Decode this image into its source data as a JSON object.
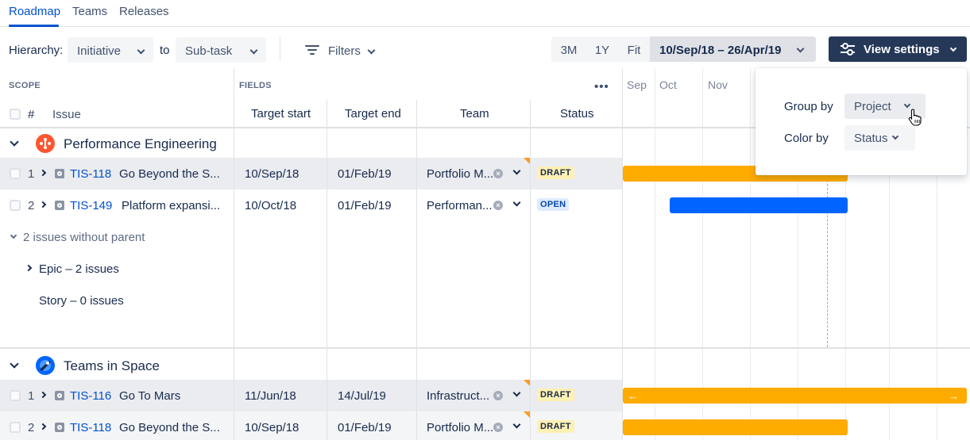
{
  "tabs": [
    {
      "label": "Roadmap"
    },
    {
      "label": "Teams"
    },
    {
      "label": "Releases"
    }
  ],
  "toolbar": {
    "hierarchy_label": "Hierarchy:",
    "hierarchy_from": "Initiative",
    "to_label": "to",
    "hierarchy_to": "Sub-task",
    "filters_label": "Filters",
    "range_3m": "3M",
    "range_1y": "1Y",
    "range_fit": "Fit",
    "date_range": "10/Sep/18 – 26/Apr/19",
    "view_settings_label": "View settings"
  },
  "header": {
    "scope": "SCOPE",
    "fields": "FIELDS",
    "more": "•••",
    "hash": "#",
    "issue": "Issue",
    "target_start": "Target start",
    "target_end": "Target end",
    "team": "Team",
    "status": "Status"
  },
  "timeline": {
    "months": [
      "Sep",
      "Oct",
      "Nov"
    ],
    "colors": {
      "draft_bar": "#ffab00",
      "open_bar": "#0065ff",
      "today_line": "#ff991f"
    }
  },
  "groups": [
    {
      "title": "Performance Engineering",
      "icon": "performance-engineering-icon",
      "rows": [
        {
          "num": "1",
          "key": "TIS-118",
          "summary": "Go Beyond the S...",
          "start": "10/Sep/18",
          "end": "01/Feb/19",
          "team": "Portfolio M...",
          "status": "DRAFT"
        },
        {
          "num": "2",
          "key": "TIS-149",
          "summary": "Platform expansi...",
          "start": "10/Oct/18",
          "end": "01/Feb/19",
          "team": "Performan...",
          "status": "OPEN"
        }
      ],
      "no_parent": {
        "label": "2 issues without parent",
        "epic": "Epic – 2 issues",
        "story": "Story – 0 issues"
      }
    },
    {
      "title": "Teams in Space",
      "icon": "teams-in-space-icon",
      "rows": [
        {
          "num": "1",
          "key": "TIS-116",
          "summary": "Go To Mars",
          "start": "11/Jun/18",
          "end": "14/Jul/19",
          "team": "Infrastruct...",
          "status": "DRAFT"
        },
        {
          "num": "2",
          "key": "TIS-118",
          "summary": "Go Beyond the S...",
          "start": "10/Sep/18",
          "end": "01/Feb/19",
          "team": "Portfolio M...",
          "status": "DRAFT"
        }
      ]
    }
  ],
  "popover": {
    "group_by_label": "Group by",
    "group_by_value": "Project",
    "color_by_label": "Color by",
    "color_by_value": "Status"
  }
}
